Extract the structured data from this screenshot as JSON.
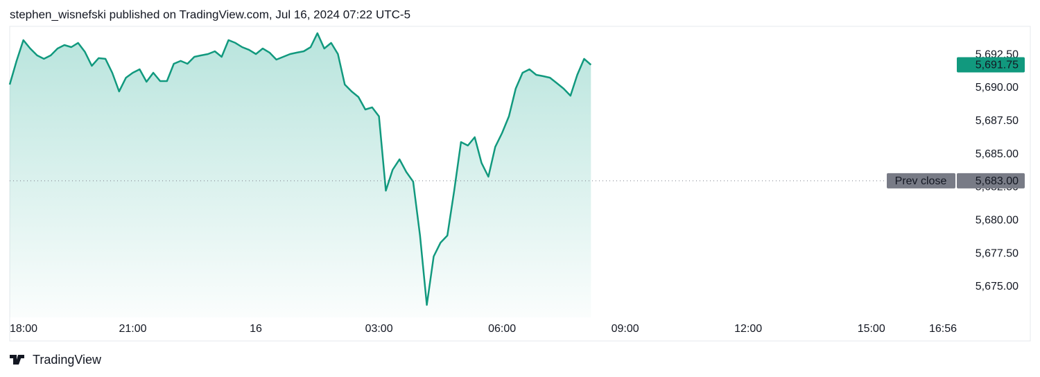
{
  "header": "stephen_wisnefski published on TradingView.com, Jul 16, 2024 07:22 UTC-5",
  "footer": "TradingView",
  "chart_data": {
    "type": "area",
    "color": "#11997e",
    "grid": false,
    "x": [
      1080,
      1090,
      1100,
      1110,
      1120,
      1130,
      1140,
      1150,
      1160,
      1170,
      1180,
      1190,
      1200,
      1210,
      1220,
      1230,
      1240,
      1250,
      1260,
      1270,
      1280,
      1290,
      1300,
      1310,
      1320,
      1330,
      1340,
      1350,
      1360,
      1370,
      1380,
      1390,
      1400,
      1410,
      1420,
      1430,
      1440,
      1450,
      1460,
      1470,
      1480,
      1490,
      1500,
      1510,
      1520,
      1530,
      1540,
      1550,
      1560,
      1570,
      1580,
      1590,
      1600,
      1610,
      1620,
      1630,
      1640,
      1650,
      1660,
      1670,
      1680,
      1690,
      1700,
      1710,
      1720,
      1730,
      1740,
      1750,
      1760,
      1770,
      1780,
      1790,
      1800,
      1810,
      1820,
      1830,
      1840,
      1850,
      1860,
      1870,
      1880,
      1890,
      1900,
      1910,
      1920,
      1930
    ],
    "values": [
      5690.26,
      5692.04,
      5693.61,
      5692.98,
      5692.46,
      5692.2,
      5692.46,
      5692.98,
      5693.24,
      5693.08,
      5693.4,
      5692.72,
      5691.67,
      5692.25,
      5692.2,
      5691.15,
      5689.74,
      5690.78,
      5691.15,
      5691.41,
      5690.47,
      5691.15,
      5690.52,
      5690.52,
      5691.83,
      5692.04,
      5691.83,
      5692.35,
      5692.46,
      5692.56,
      5692.77,
      5692.35,
      5693.61,
      5693.4,
      5693.08,
      5692.88,
      5692.56,
      5692.98,
      5692.67,
      5692.14,
      5692.35,
      5692.56,
      5692.67,
      5692.77,
      5693.08,
      5694.13,
      5692.98,
      5693.4,
      5692.56,
      5690.26,
      5689.74,
      5689.32,
      5688.38,
      5688.54,
      5687.86,
      5682.26,
      5683.83,
      5684.62,
      5683.67,
      5682.94,
      5678.87,
      5673.64,
      5677.3,
      5678.34,
      5678.87,
      5682.26,
      5685.92,
      5685.66,
      5686.29,
      5684.35,
      5683.31,
      5685.56,
      5686.6,
      5687.86,
      5689.95,
      5691.15,
      5691.41,
      5690.99,
      5690.89,
      5690.78,
      5690.37,
      5689.95,
      5689.42,
      5690.99,
      5692.2,
      5691.75
    ],
    "xlim": [
      1080,
      2465
    ],
    "xticks": [
      {
        "value": 1080,
        "label": "18:00"
      },
      {
        "value": 1260,
        "label": "21:00"
      },
      {
        "value": 1440,
        "label": "16"
      },
      {
        "value": 1620,
        "label": "03:00"
      },
      {
        "value": 1800,
        "label": "06:00"
      },
      {
        "value": 1980,
        "label": "09:00"
      },
      {
        "value": 2160,
        "label": "12:00"
      },
      {
        "value": 2340,
        "label": "15:00"
      },
      {
        "value": 2456,
        "label": "16:56"
      }
    ],
    "ylim": [
      5672.7,
      5694.65
    ],
    "yticks": [
      {
        "value": 5675,
        "label": "5,675.00"
      },
      {
        "value": 5677.5,
        "label": "5,677.50"
      },
      {
        "value": 5680,
        "label": "5,680.00"
      },
      {
        "value": 5682.5,
        "label": "5,682.50"
      },
      {
        "value": 5685,
        "label": "5,685.00"
      },
      {
        "value": 5687.5,
        "label": "5,687.50"
      },
      {
        "value": 5690,
        "label": "5,690.00"
      },
      {
        "value": 5692.5,
        "label": "5,692.50"
      }
    ],
    "last_price": {
      "value": 5691.75,
      "label": "5,691.75"
    },
    "prev_close": {
      "text": "Prev close",
      "value": 5683,
      "label": "5,683.00"
    }
  }
}
